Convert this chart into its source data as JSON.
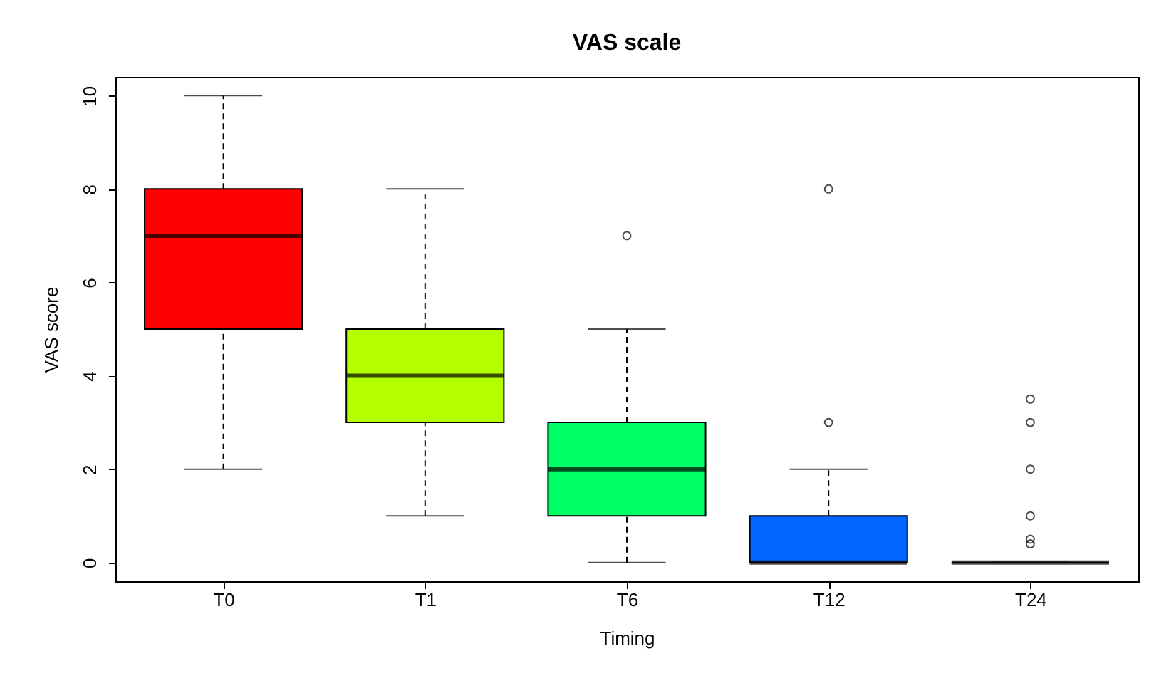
{
  "chart_data": {
    "type": "box",
    "title": "VAS scale",
    "xlabel": "Timing",
    "ylabel": "VAS score",
    "categories": [
      "T0",
      "T1",
      "T6",
      "T12",
      "T24"
    ],
    "colors": [
      "#ff0000",
      "#b3ff00",
      "#00ff66",
      "#0066ff",
      "#000000"
    ],
    "boxes": [
      {
        "low": 2,
        "q1": 5,
        "median": 7,
        "q3": 8,
        "high": 10
      },
      {
        "low": 1,
        "q1": 3,
        "median": 4,
        "q3": 5,
        "high": 8
      },
      {
        "low": 0,
        "q1": 1,
        "median": 2,
        "q3": 3,
        "high": 5,
        "outliers": [
          7
        ]
      },
      {
        "low": 0,
        "q1": 0,
        "median": 0,
        "q3": 1,
        "high": 2,
        "outliers": [
          3,
          8
        ]
      },
      {
        "low": 0,
        "q1": 0,
        "median": 0,
        "q3": 0,
        "high": 0,
        "outliers": [
          3.5,
          3,
          2,
          1,
          0.5,
          0.4
        ]
      }
    ],
    "ylim": [
      -0.4,
      10.4
    ],
    "yticks": [
      0,
      2,
      4,
      6,
      8,
      10
    ],
    "grid": false
  }
}
